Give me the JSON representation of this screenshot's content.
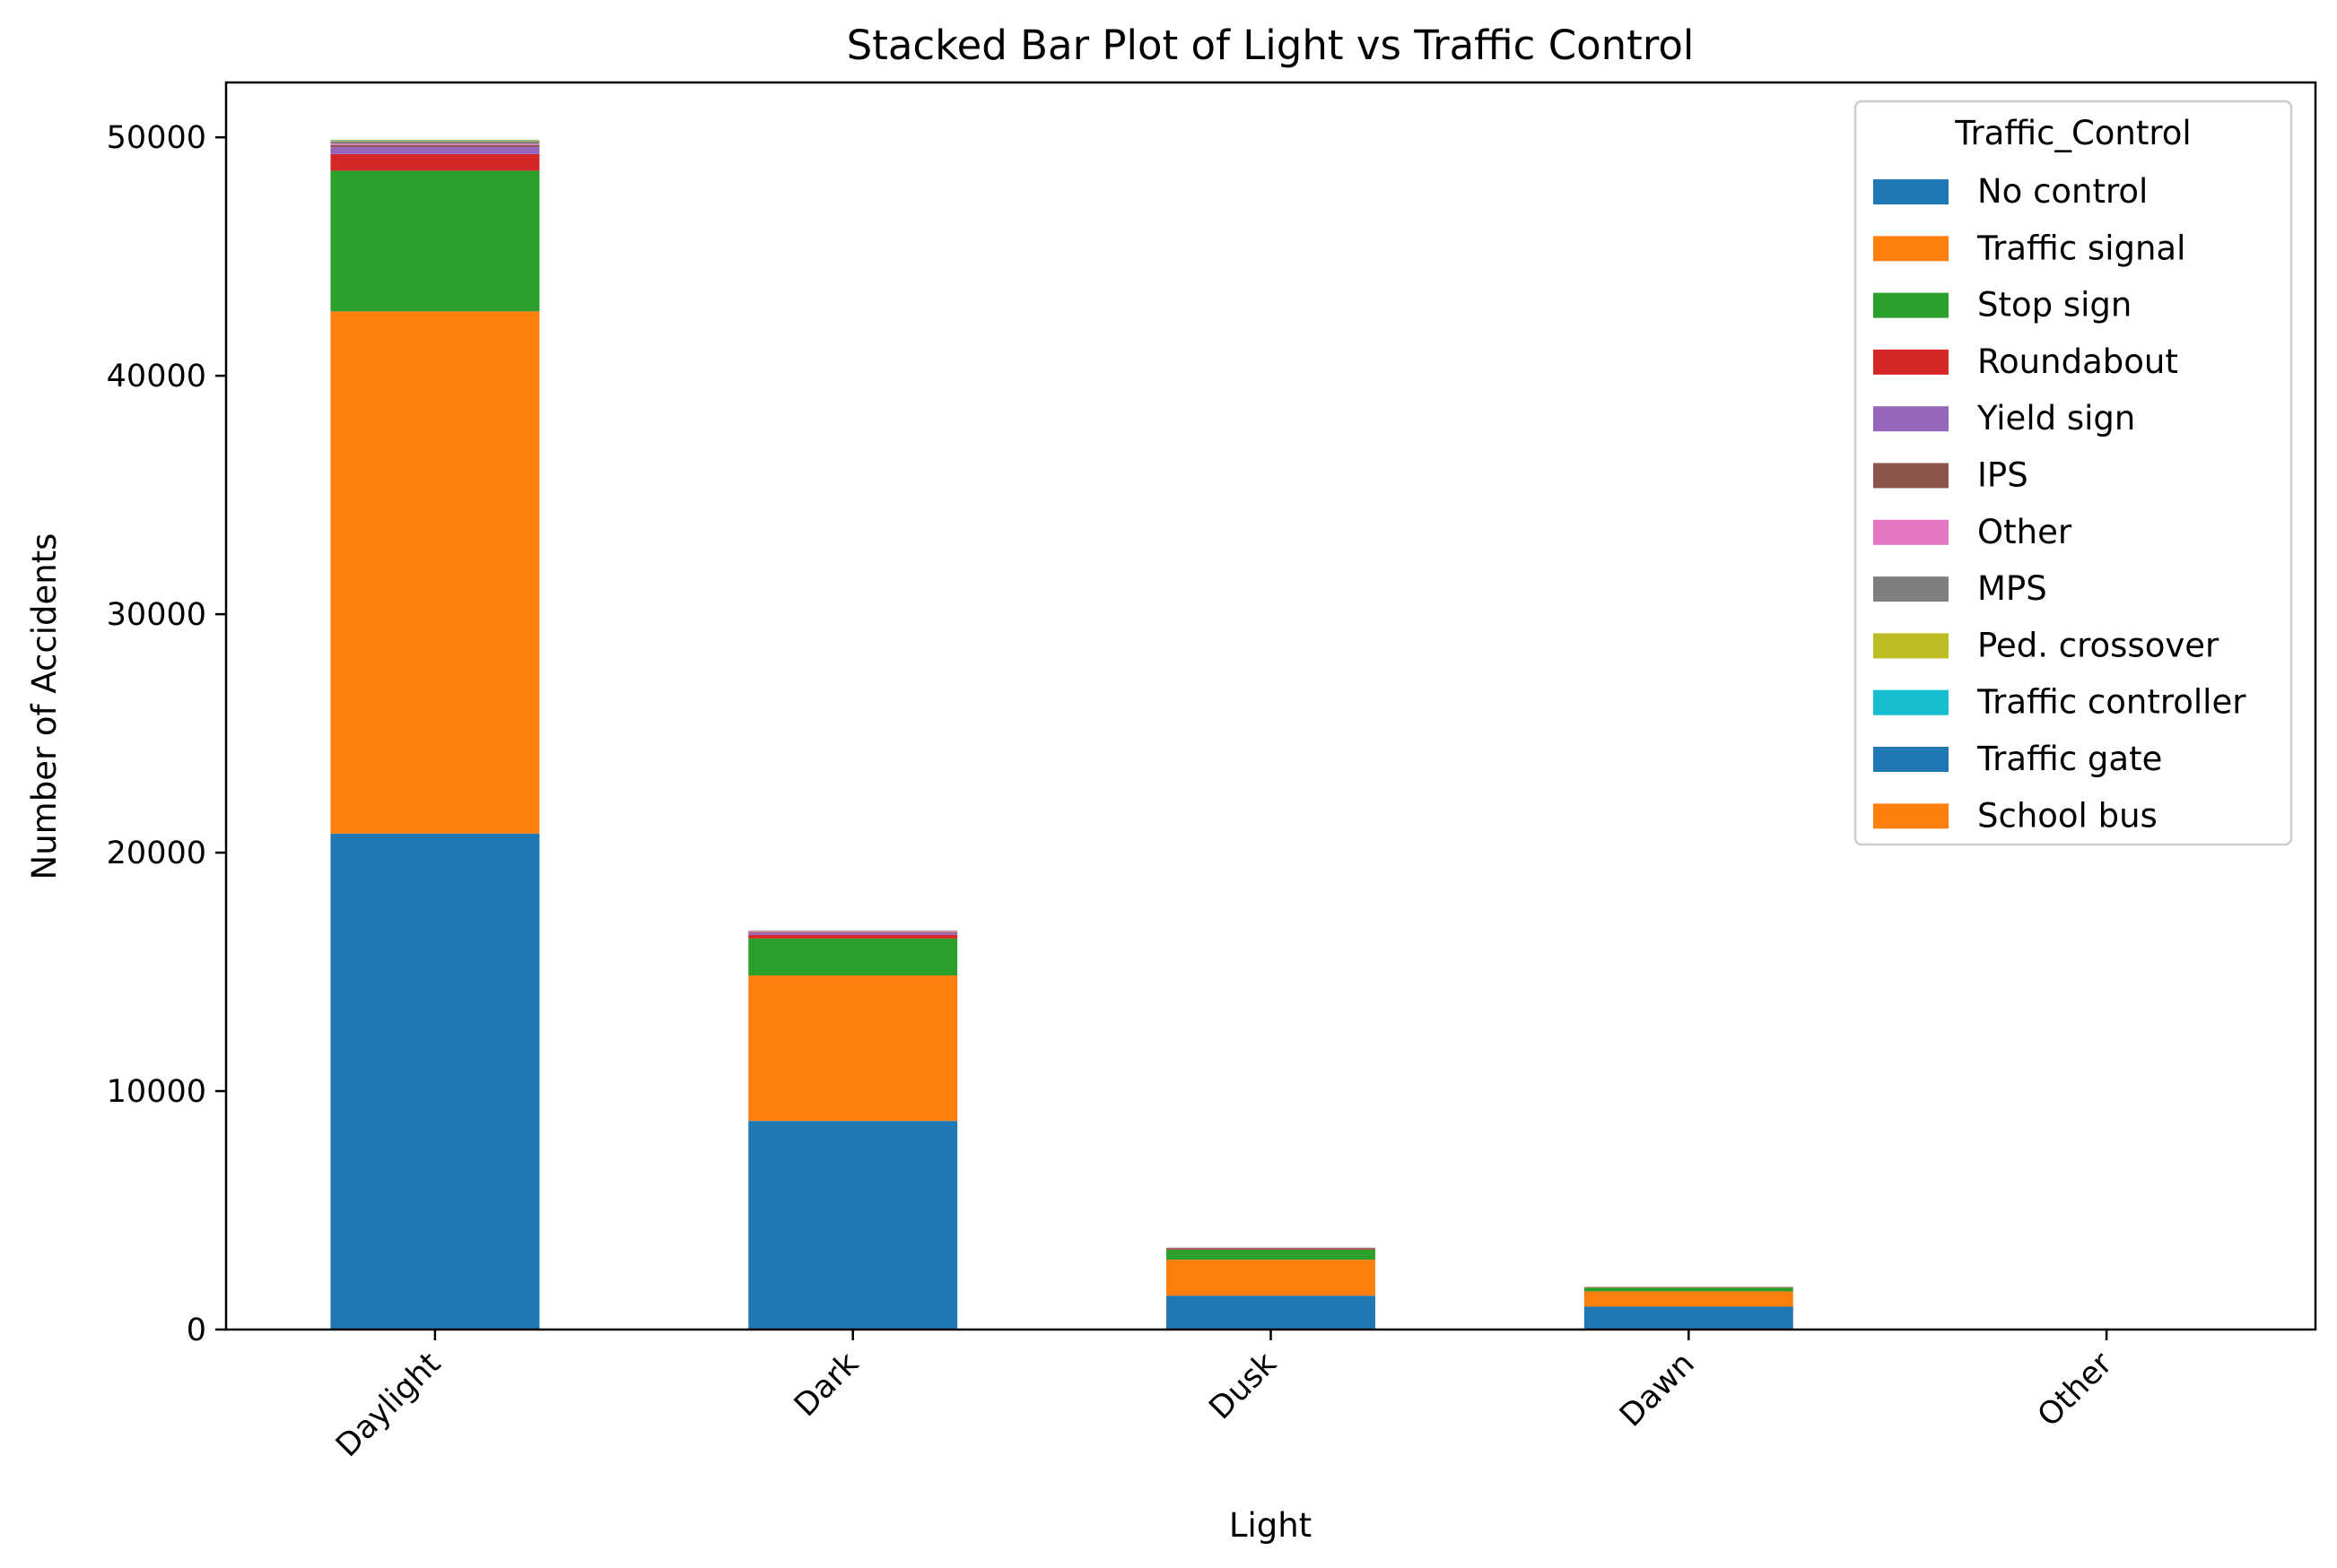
{
  "chart_data": {
    "type": "bar",
    "stacked": true,
    "title": "Stacked Bar Plot of Light vs Traffic Control",
    "xlabel": "Light",
    "ylabel": "Number of Accidents",
    "categories": [
      "Daylight",
      "Dark",
      "Dusk",
      "Dawn",
      "Other"
    ],
    "ylim": [
      0,
      52300
    ],
    "yticks": [
      0,
      10000,
      20000,
      30000,
      40000,
      50000
    ],
    "grid": false,
    "legend": {
      "title": "Traffic_Control",
      "placement": "top-right"
    },
    "series": [
      {
        "name": "No control",
        "color": "#1f77b4",
        "values": [
          20800,
          8750,
          1420,
          960,
          8
        ]
      },
      {
        "name": "Traffic signal",
        "color": "#ff7f0e",
        "values": [
          21900,
          6100,
          1510,
          640,
          4
        ]
      },
      {
        "name": "Stop sign",
        "color": "#2ca02c",
        "values": [
          5900,
          1550,
          430,
          160,
          2
        ]
      },
      {
        "name": "Roundabout",
        "color": "#d62728",
        "values": [
          700,
          150,
          40,
          15,
          0
        ]
      },
      {
        "name": "Yield sign",
        "color": "#9467bd",
        "values": [
          290,
          90,
          20,
          8,
          0
        ]
      },
      {
        "name": "IPS",
        "color": "#8c564b",
        "values": [
          80,
          25,
          6,
          3,
          0
        ]
      },
      {
        "name": "Other",
        "color": "#e377c2",
        "values": [
          60,
          40,
          5,
          3,
          0
        ]
      },
      {
        "name": "MPS",
        "color": "#7f7f7f",
        "values": [
          100,
          20,
          5,
          2,
          0
        ]
      },
      {
        "name": "Ped. crossover",
        "color": "#bcbd22",
        "values": [
          40,
          8,
          2,
          1,
          0
        ]
      },
      {
        "name": "Traffic controller",
        "color": "#17becf",
        "values": [
          15,
          3,
          1,
          0,
          0
        ]
      },
      {
        "name": "Traffic gate",
        "color": "#1f77b4",
        "values": [
          8,
          2,
          0,
          0,
          0
        ]
      },
      {
        "name": "School bus",
        "color": "#ff7f0e",
        "values": [
          5,
          1,
          0,
          0,
          0
        ]
      }
    ]
  }
}
